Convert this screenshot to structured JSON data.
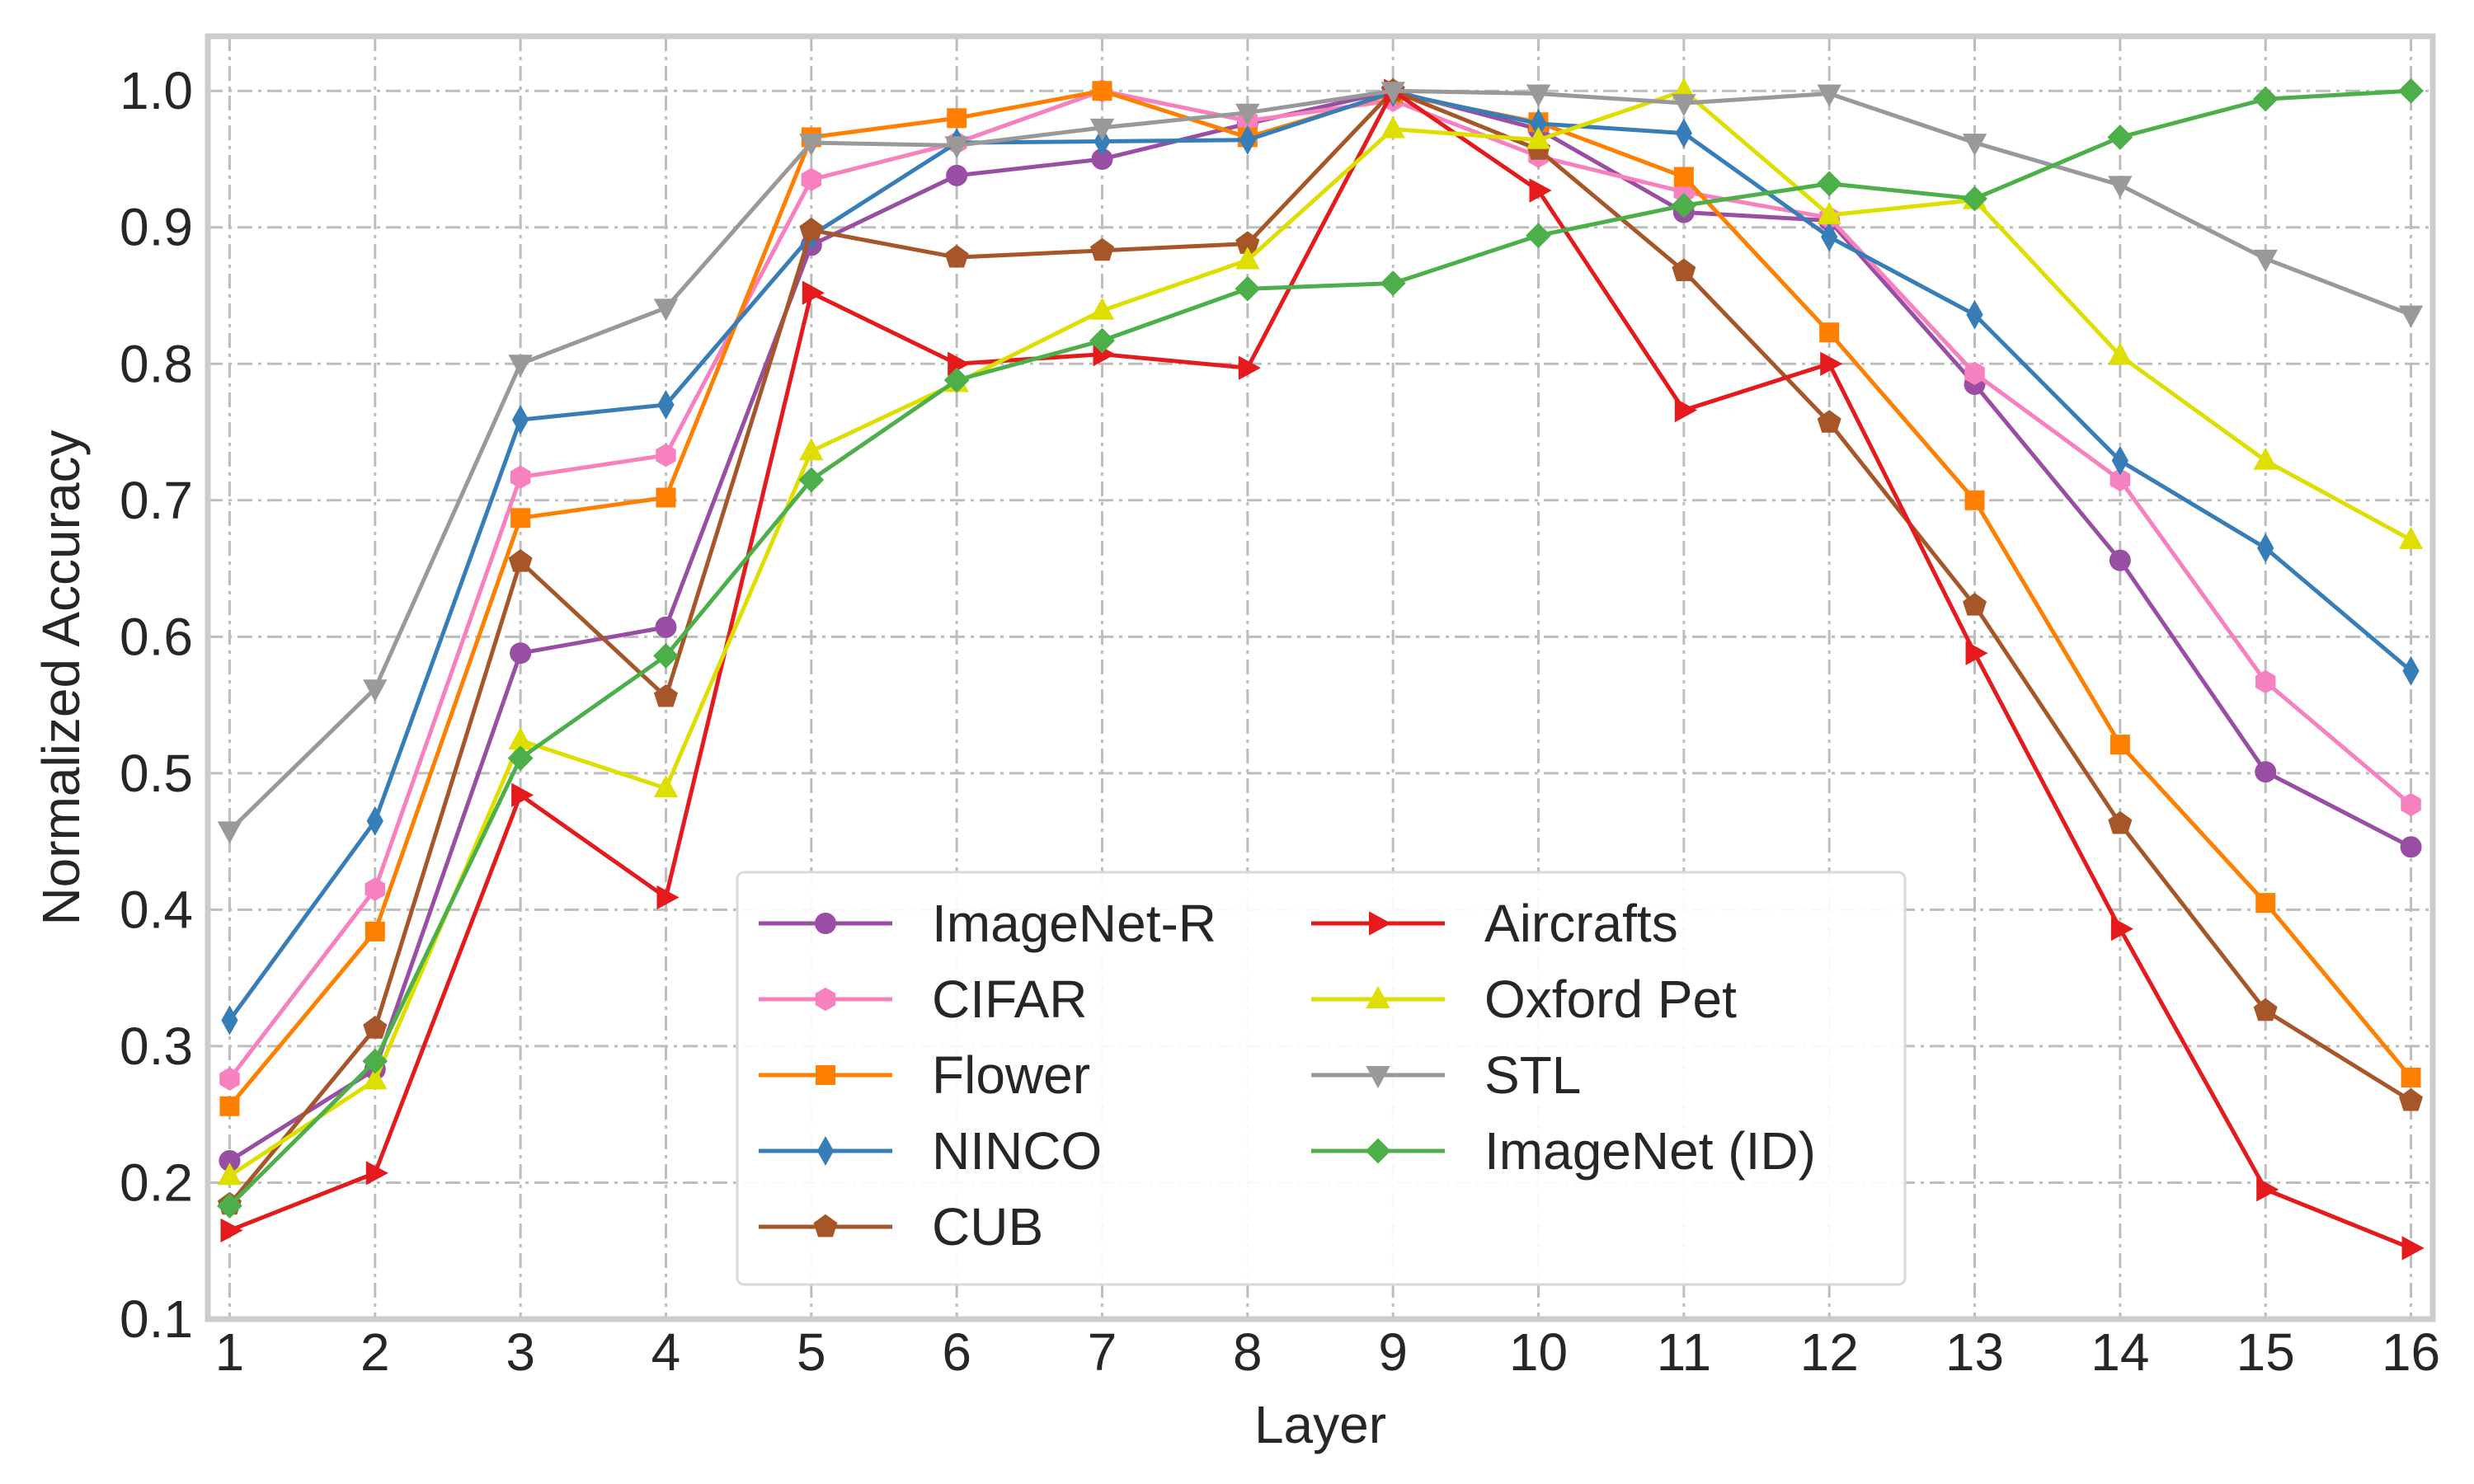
{
  "chart_data": {
    "type": "line",
    "title": "",
    "xlabel": "Layer",
    "ylabel": "Normalized  Accuracy",
    "x": [
      1,
      2,
      3,
      4,
      5,
      6,
      7,
      8,
      9,
      10,
      11,
      12,
      13,
      14,
      15,
      16
    ],
    "x_tick_labels": [
      "1",
      "2",
      "3",
      "4",
      "5",
      "6",
      "7",
      "8",
      "9",
      "10",
      "11",
      "12",
      "13",
      "14",
      "15",
      "16"
    ],
    "xlim": [
      0.85,
      16.15
    ],
    "ylim": [
      0.1,
      1.04
    ],
    "y_ticks": [
      0.1,
      0.2,
      0.3,
      0.4,
      0.5,
      0.6,
      0.7,
      0.8,
      0.9,
      1.0
    ],
    "y_tick_labels": [
      "0.1",
      "0.2",
      "0.3",
      "0.4",
      "0.5",
      "0.6",
      "0.7",
      "0.8",
      "0.9",
      "1.0"
    ],
    "grid": true,
    "legend_position": "lower-center",
    "legend_columns": 2,
    "series": [
      {
        "name": "ImageNet-R",
        "color": "#984ea3",
        "marker": "circle",
        "values": [
          0.216,
          0.283,
          0.588,
          0.607,
          0.887,
          0.938,
          0.95,
          0.976,
          1.0,
          0.972,
          0.911,
          0.905,
          0.785,
          0.656,
          0.501,
          0.446
        ]
      },
      {
        "name": "CIFAR",
        "color": "#f781bf",
        "marker": "hexagon",
        "values": [
          0.276,
          0.415,
          0.717,
          0.733,
          0.935,
          0.962,
          1.0,
          0.978,
          0.993,
          0.952,
          0.926,
          0.907,
          0.793,
          0.715,
          0.567,
          0.477
        ]
      },
      {
        "name": "Flower",
        "color": "#ff7f00",
        "marker": "square",
        "values": [
          0.256,
          0.384,
          0.687,
          0.702,
          0.966,
          0.98,
          1.0,
          0.966,
          0.998,
          0.977,
          0.937,
          0.823,
          0.7,
          0.521,
          0.405,
          0.277
        ]
      },
      {
        "name": "NINCO",
        "color": "#377eb8",
        "marker": "thin-diamond",
        "values": [
          0.319,
          0.465,
          0.759,
          0.77,
          0.894,
          0.962,
          0.963,
          0.964,
          0.999,
          0.976,
          0.969,
          0.893,
          0.836,
          0.729,
          0.665,
          0.575
        ]
      },
      {
        "name": "CUB",
        "color": "#a65628",
        "marker": "pentagon",
        "values": [
          0.184,
          0.313,
          0.655,
          0.556,
          0.898,
          0.878,
          0.883,
          0.888,
          1.0,
          0.957,
          0.868,
          0.757,
          0.623,
          0.463,
          0.326,
          0.26
        ]
      },
      {
        "name": "Aircrafts",
        "color": "#e41a1c",
        "marker": "triangle-right",
        "values": [
          0.165,
          0.207,
          0.484,
          0.409,
          0.852,
          0.8,
          0.807,
          0.797,
          1.0,
          0.927,
          0.766,
          0.8,
          0.588,
          0.386,
          0.195,
          0.152
        ]
      },
      {
        "name": "Oxford Pet",
        "color": "#dede00",
        "marker": "triangle-up",
        "values": [
          0.205,
          0.275,
          0.524,
          0.489,
          0.736,
          0.786,
          0.839,
          0.876,
          0.972,
          0.964,
          1.0,
          0.909,
          0.92,
          0.806,
          0.729,
          0.671
        ]
      },
      {
        "name": "STL",
        "color": "#999999",
        "marker": "triangle-down",
        "values": [
          0.458,
          0.562,
          0.8,
          0.841,
          0.962,
          0.96,
          0.973,
          0.984,
          1.0,
          0.998,
          0.991,
          0.998,
          0.962,
          0.931,
          0.877,
          0.836
        ]
      },
      {
        "name": "ImageNet (ID)",
        "color": "#4daf4a",
        "marker": "diamond",
        "values": [
          0.183,
          0.289,
          0.511,
          0.586,
          0.715,
          0.788,
          0.817,
          0.855,
          0.859,
          0.894,
          0.916,
          0.932,
          0.921,
          0.966,
          0.994,
          1.0
        ]
      }
    ]
  }
}
